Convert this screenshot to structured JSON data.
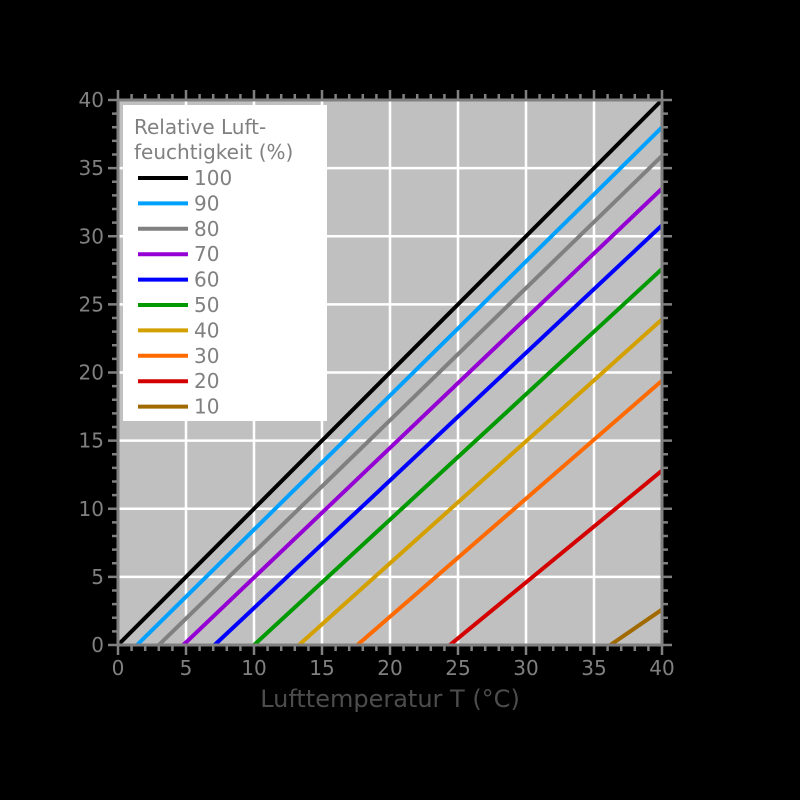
{
  "chart_data": {
    "type": "line",
    "title": "",
    "xlabel": "Lufttemperatur  T (°C)",
    "ylabel": "",
    "xlim": [
      0,
      40
    ],
    "ylim": [
      0,
      40
    ],
    "x_ticks": [
      0,
      5,
      10,
      15,
      20,
      25,
      30,
      35,
      40
    ],
    "y_ticks": [
      0,
      5,
      10,
      15,
      20,
      25,
      30,
      35,
      40
    ],
    "grid": true,
    "legend_position": "upper-left",
    "legend_title": [
      "Relative Luft-",
      "feuchtigkeit (%)"
    ],
    "background": "#c0c0c0",
    "series": [
      {
        "name": "100",
        "color": "#000000",
        "points": [
          [
            0,
            0
          ],
          [
            40,
            40
          ]
        ]
      },
      {
        "name": "90",
        "color": "#00a0ff",
        "points": [
          [
            1.4,
            0
          ],
          [
            40,
            38.0
          ]
        ]
      },
      {
        "name": "80",
        "color": "#808080",
        "points": [
          [
            3.0,
            0
          ],
          [
            40,
            35.9
          ]
        ]
      },
      {
        "name": "70",
        "color": "#9400d3",
        "points": [
          [
            4.8,
            0
          ],
          [
            40,
            33.5
          ]
        ]
      },
      {
        "name": "60",
        "color": "#0000ff",
        "points": [
          [
            7.1,
            0
          ],
          [
            40,
            30.8
          ]
        ]
      },
      {
        "name": "50",
        "color": "#009900",
        "points": [
          [
            10.0,
            0
          ],
          [
            40,
            27.6
          ]
        ]
      },
      {
        "name": "40",
        "color": "#d4a000",
        "points": [
          [
            13.3,
            0
          ],
          [
            40,
            23.9
          ]
        ]
      },
      {
        "name": "30",
        "color": "#ff6a00",
        "points": [
          [
            17.6,
            0
          ],
          [
            40,
            19.4
          ]
        ]
      },
      {
        "name": "20",
        "color": "#d40000",
        "points": [
          [
            24.4,
            0
          ],
          [
            40,
            12.8
          ]
        ]
      },
      {
        "name": "10",
        "color": "#a06a00",
        "points": [
          [
            36.2,
            0
          ],
          [
            40,
            2.6
          ]
        ]
      }
    ]
  }
}
